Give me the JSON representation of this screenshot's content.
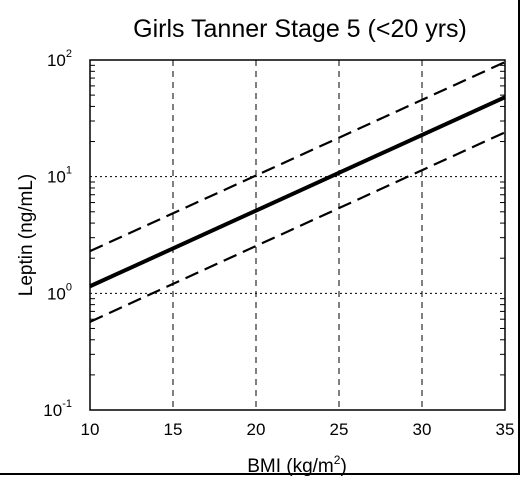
{
  "chart_data": {
    "type": "line",
    "title": "Girls Tanner Stage 5 (<20 yrs)",
    "xlabel": "BMI (kg/m",
    "xlabel_sup": "2",
    "xlabel_end": ")",
    "ylabel": "Leptin (ng/mL)",
    "xlim": [
      10,
      35
    ],
    "ylim": [
      0.1,
      100
    ],
    "yscale": "log",
    "x_ticks": [
      "10",
      "15",
      "20",
      "25",
      "30",
      "35"
    ],
    "y_ticks": [
      {
        "base": "10",
        "exp": "-1"
      },
      {
        "base": "10",
        "exp": "0"
      },
      {
        "base": "10",
        "exp": "1"
      },
      {
        "base": "10",
        "exp": "2"
      }
    ],
    "grid": true,
    "series": [
      {
        "style": "solid-thick",
        "points": [
          [
            10,
            1.15
          ],
          [
            35,
            48
          ]
        ]
      },
      {
        "style": "dashed-upper",
        "points": [
          [
            10,
            2.3
          ],
          [
            35,
            96
          ]
        ]
      },
      {
        "style": "dashed-lower",
        "points": [
          [
            10,
            0.57
          ],
          [
            35,
            24
          ]
        ]
      }
    ]
  }
}
